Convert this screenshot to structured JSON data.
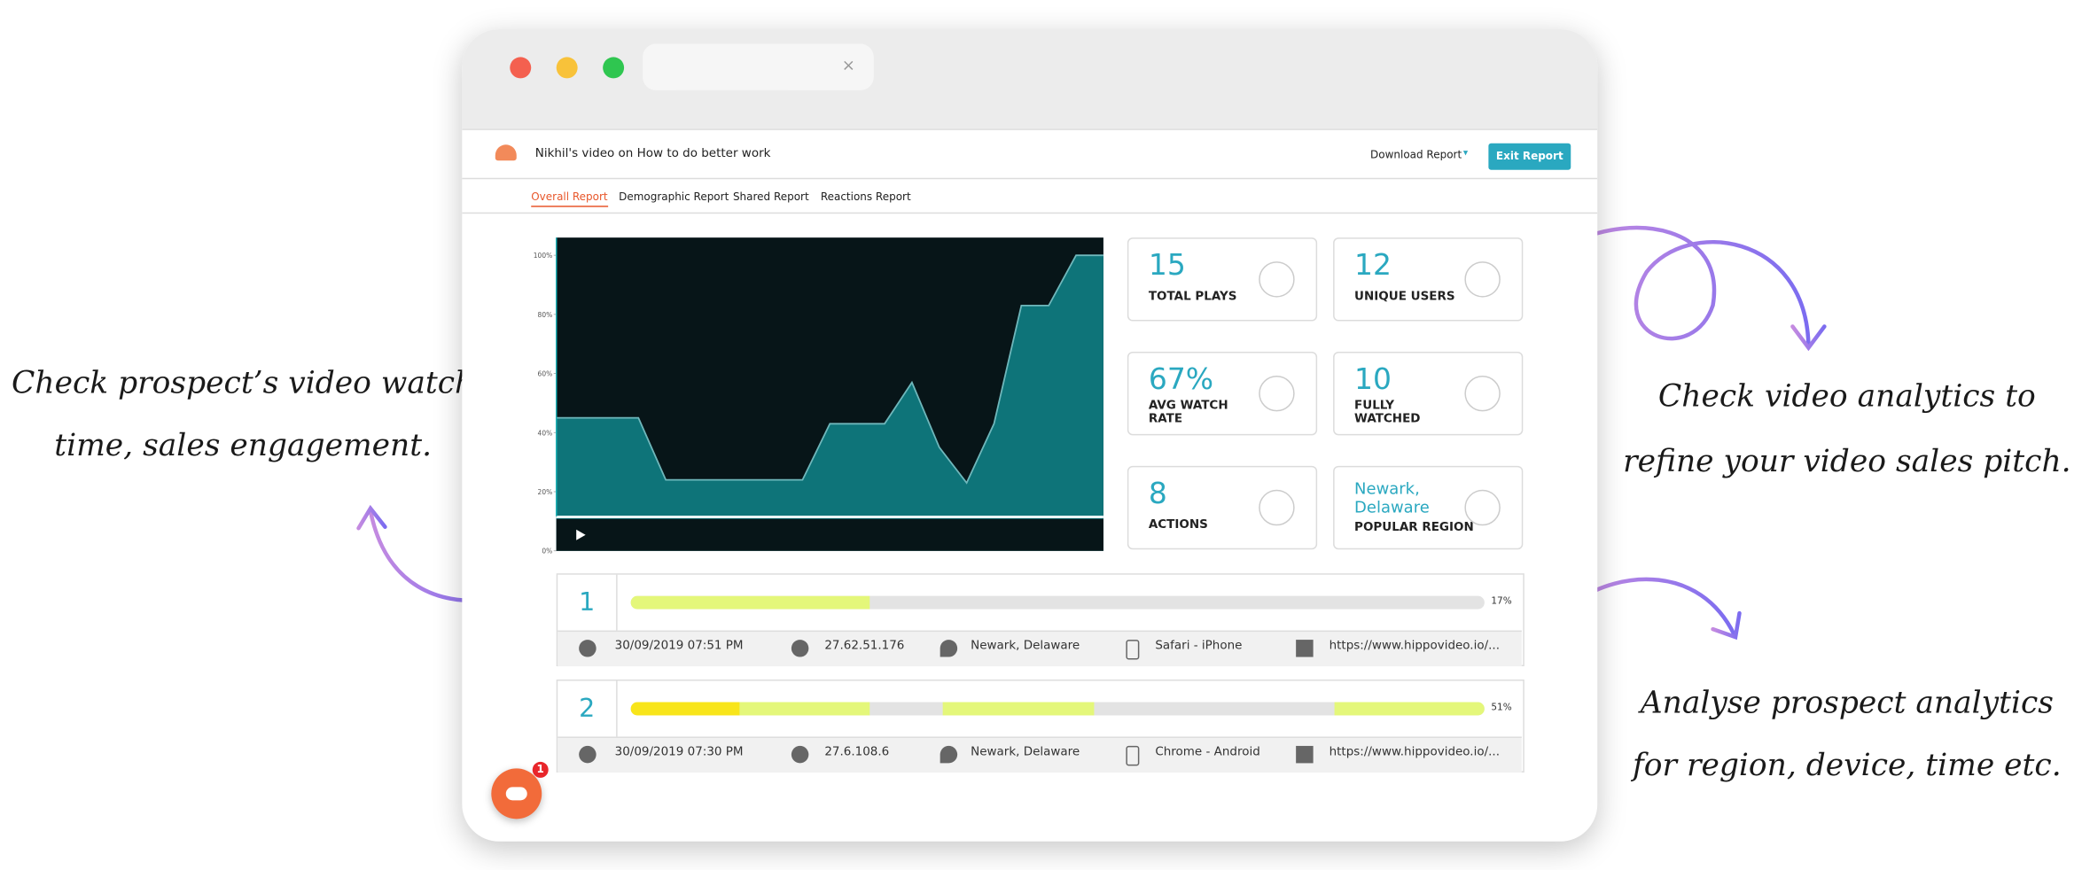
{
  "annotations": {
    "left": [
      "Check prospect’s video watch",
      "time, sales engagement."
    ],
    "right_top": [
      "Check video analytics to",
      "refine your video sales pitch."
    ],
    "right_bottom": [
      "Analyse prospect analytics",
      "for region, device, time etc."
    ]
  },
  "header": {
    "title": "Nikhil's video on How to do better work",
    "download": "Download Report",
    "exit": "Exit Report"
  },
  "tabs": [
    "Overall Report",
    "Demographic Report",
    "Shared Report",
    "Reactions Report"
  ],
  "stats": [
    {
      "value": "15",
      "label": "TOTAL PLAYS"
    },
    {
      "value": "12",
      "label": "UNIQUE USERS"
    },
    {
      "value": "67%",
      "label": [
        "AVG WATCH",
        "RATE"
      ]
    },
    {
      "value": "10",
      "label": [
        "FULLY",
        "WATCHED"
      ]
    },
    {
      "value": "8",
      "label": "ACTIONS"
    },
    {
      "value": [
        "Newark,",
        "Delaware"
      ],
      "label": "POPULAR REGION"
    }
  ],
  "sessions": [
    {
      "index": "1",
      "percent": "17%",
      "date": "30/09/2019 07:51 PM",
      "ip": "27.62.51.176",
      "location": "Newark, Delaware",
      "device": "Safari - iPhone",
      "url": "https://www.hippovideo.io/..."
    },
    {
      "index": "2",
      "percent": "51%",
      "date": "30/09/2019 07:30 PM",
      "ip": "27.6.108.6",
      "location": "Newark, Delaware",
      "device": "Chrome - Android",
      "url": "https://www.hippovideo.io/..."
    }
  ],
  "chat_badge": "1",
  "chart_data": {
    "type": "area",
    "categories": [
      null,
      null,
      null,
      null,
      null,
      null,
      null,
      null,
      null,
      null,
      null,
      null,
      null,
      null,
      null,
      null,
      null,
      null,
      null,
      null,
      null
    ],
    "values": [
      45,
      45,
      45,
      45,
      24,
      24,
      24,
      24,
      24,
      24,
      43,
      43,
      43,
      57,
      35,
      23,
      43,
      83,
      83,
      100,
      100
    ],
    "color": "#0e7479",
    "ylim": [
      0,
      106
    ],
    "yticks": [
      {
        "value": 0,
        "label": "0%"
      },
      {
        "value": 20,
        "label": "20%"
      },
      {
        "value": 40,
        "label": "40%"
      },
      {
        "value": 60,
        "label": "60%"
      },
      {
        "value": 80,
        "label": "80%"
      },
      {
        "value": 100,
        "label": "100%"
      }
    ]
  }
}
